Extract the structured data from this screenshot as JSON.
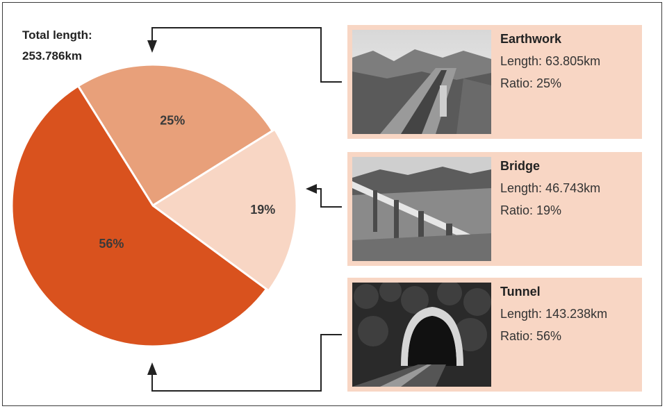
{
  "total": {
    "label": "Total length:",
    "value": "253.786km"
  },
  "chart_data": {
    "type": "pie",
    "slices": [
      {
        "name": "Earthwork",
        "value": 25,
        "label": "25%",
        "color": "#e8a07a"
      },
      {
        "name": "Bridge",
        "value": 19,
        "label": "19%",
        "color": "#f8d6c4"
      },
      {
        "name": "Tunnel",
        "value": 56,
        "label": "56%",
        "color": "#d9521e"
      }
    ]
  },
  "cards": [
    {
      "name": "Earthwork",
      "length": "Length: 63.805km",
      "ratio": "Ratio: 25%",
      "photo_icon": "railway-photo"
    },
    {
      "name": "Bridge",
      "length": "Length: 46.743km",
      "ratio": "Ratio: 19%",
      "photo_icon": "bridge-photo"
    },
    {
      "name": "Tunnel",
      "length": "Length: 143.238km",
      "ratio": "Ratio: 56%",
      "photo_icon": "tunnel-photo"
    }
  ],
  "colors": {
    "frame": "#3a3a3a",
    "card_bg": "#f8d6c4",
    "arrow": "#222222"
  }
}
